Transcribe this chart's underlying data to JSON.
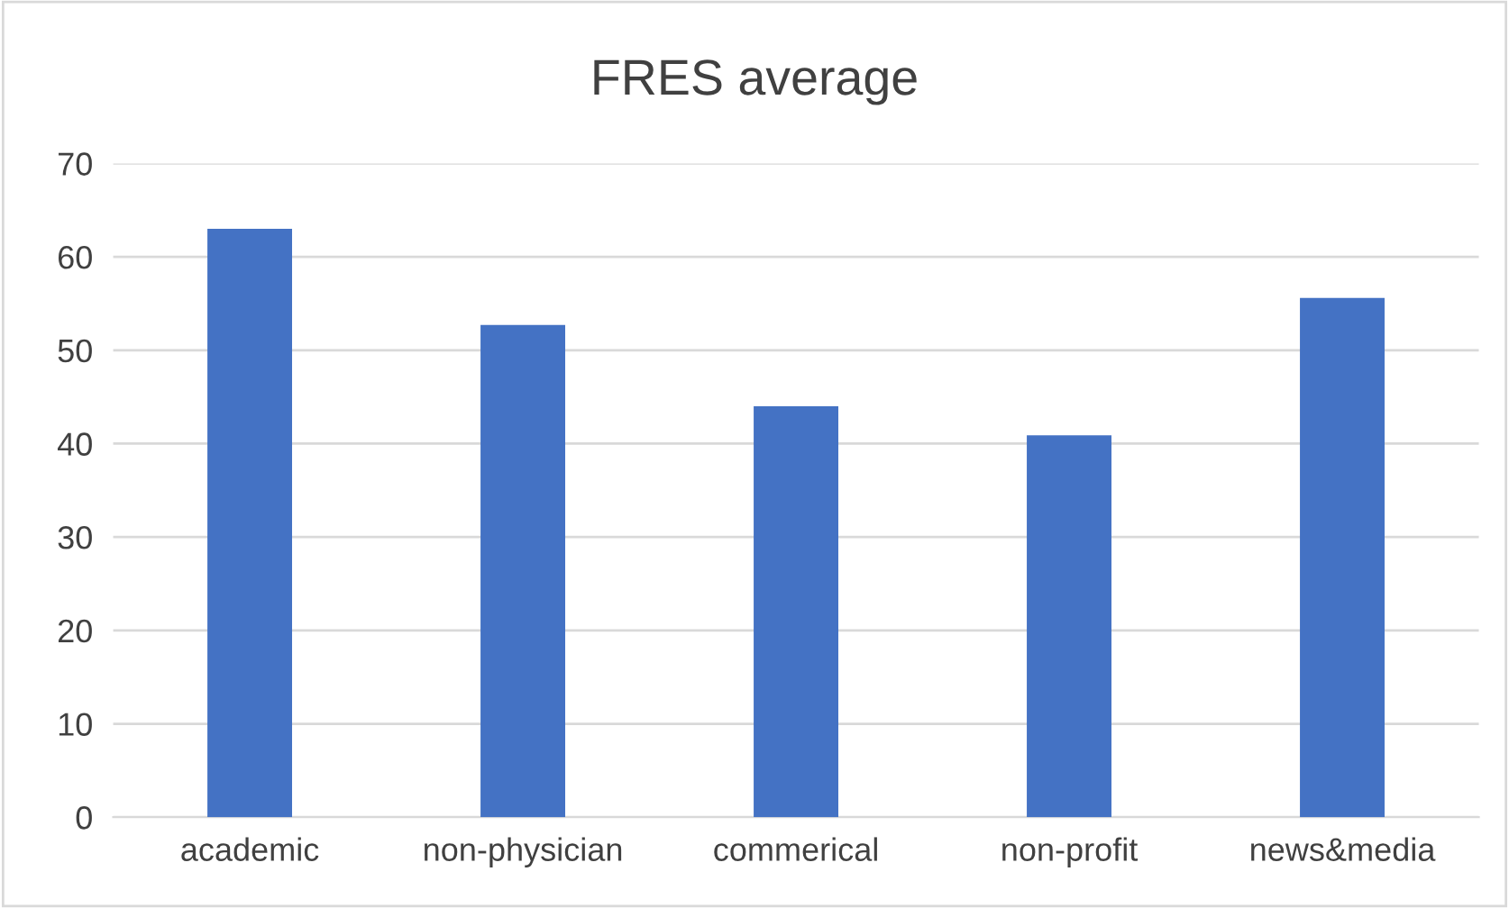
{
  "chart_data": {
    "type": "bar",
    "title": "FRES average",
    "categories": [
      "academic",
      "non-physician",
      "commerical",
      "non-profit",
      "news&media"
    ],
    "values": [
      63.0,
      52.7,
      44.0,
      40.9,
      55.6
    ],
    "color": "#4472c4",
    "ylim": [
      0,
      70
    ],
    "yticks": [
      0,
      10,
      20,
      30,
      40,
      50,
      60,
      70
    ],
    "grid": "y",
    "legend": false
  }
}
